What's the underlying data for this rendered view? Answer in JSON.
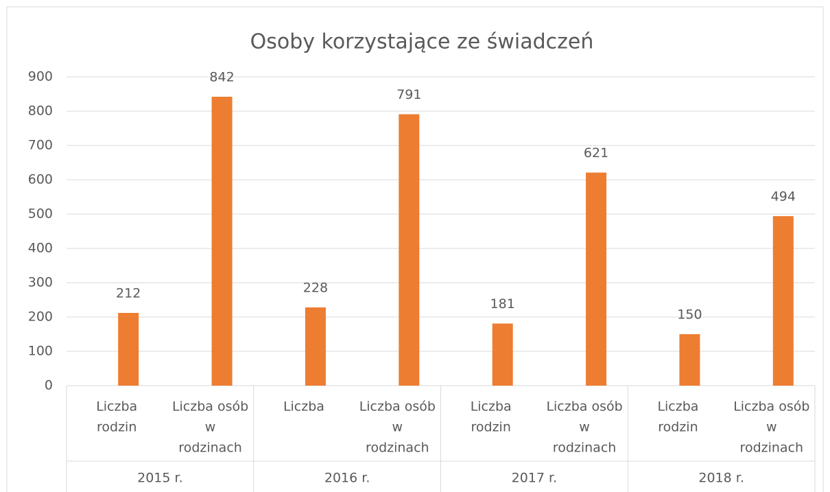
{
  "chart_data": {
    "type": "bar",
    "title": "Osoby korzystające ze świadczeń",
    "categories": [
      [
        "Liczba",
        "rodzin"
      ],
      [
        "Liczba osób",
        "w",
        "rodzinach"
      ],
      [
        "Liczba"
      ],
      [
        "Liczba osób",
        "w",
        "rodzinach"
      ],
      [
        "Liczba",
        "rodzin"
      ],
      [
        "Liczba osób",
        "w",
        "rodzinach"
      ],
      [
        "Liczba",
        "rodzin"
      ],
      [
        "Liczba osób",
        "w",
        "rodzinach"
      ]
    ],
    "groups": [
      "2015 r.",
      "2016 r.",
      "2017 r.",
      "2018 r."
    ],
    "values": [
      212,
      842,
      228,
      791,
      181,
      621,
      150,
      494
    ],
    "color": "#ed7d31",
    "ylim": [
      0,
      900
    ],
    "yticks": [
      0,
      100,
      200,
      300,
      400,
      500,
      600,
      700,
      800,
      900
    ],
    "grid": true
  }
}
